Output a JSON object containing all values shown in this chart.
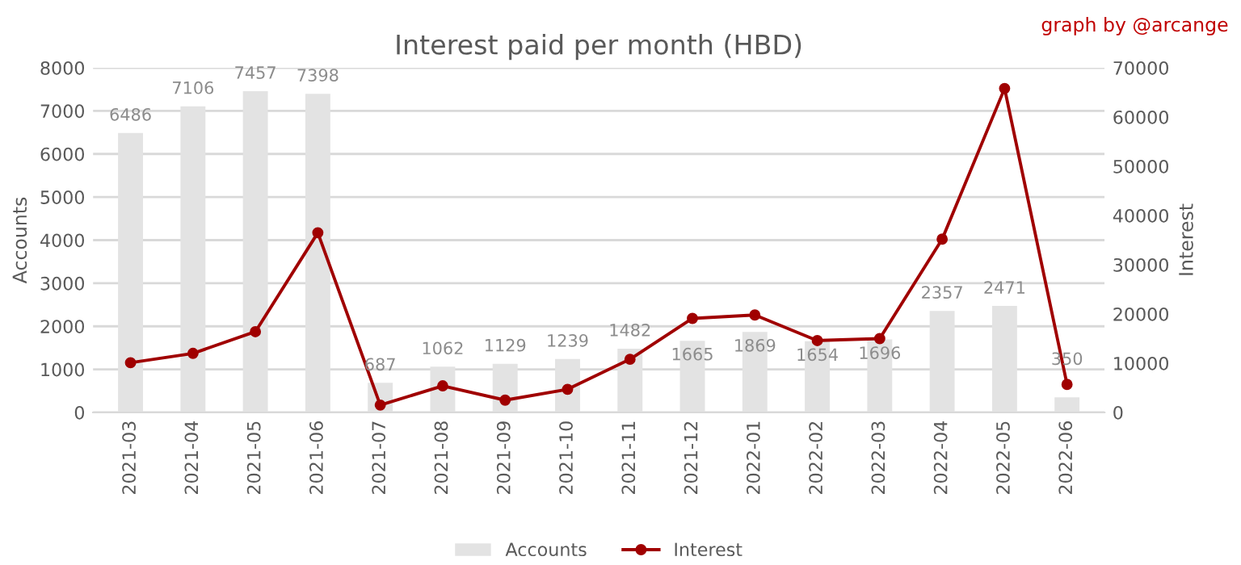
{
  "chart_data": {
    "type": "bar",
    "title": "Interest paid per month (HBD)",
    "ylabel": "Accounts",
    "y2label": "Interest",
    "annotations": [
      "graph by @arcange"
    ],
    "categories": [
      "2021-03",
      "2021-04",
      "2021-05",
      "2021-06",
      "2021-07",
      "2021-08",
      "2021-09",
      "2021-10",
      "2021-11",
      "2021-12",
      "2022-01",
      "2022-02",
      "2022-03",
      "2022-04",
      "2022-05",
      "2022-06"
    ],
    "series": [
      {
        "name": "Accounts",
        "color": "#e3e3e3",
        "values": [
          6486,
          7106,
          7457,
          7398,
          687,
          1062,
          1129,
          1239,
          1482,
          1665,
          1869,
          1654,
          1696,
          2357,
          2471,
          350
        ],
        "value_labels": [
          "6486",
          "7106",
          "7457",
          "7398",
          "687",
          "1062",
          "1129",
          "1239",
          "1482",
          "1665",
          "1869",
          "1654",
          "1696",
          "2357",
          "2471",
          "350"
        ]
      },
      {
        "name": "Interest",
        "type": "line",
        "axis": "y2",
        "color": "#a00000",
        "values": [
          10100,
          12000,
          16400,
          36500,
          1500,
          5400,
          2500,
          4700,
          10800,
          19100,
          19800,
          14600,
          15000,
          35200,
          65800,
          5700
        ]
      }
    ],
    "ylim": [
      0,
      8000
    ],
    "yticks": [
      0,
      1000,
      2000,
      3000,
      4000,
      5000,
      6000,
      7000,
      8000
    ],
    "y2lim": [
      0,
      70000
    ],
    "y2ticks": [
      0,
      10000,
      20000,
      30000,
      40000,
      50000,
      60000,
      70000
    ],
    "grid": "y",
    "legend": "bottom",
    "marker": "circle",
    "line_style": "solid"
  }
}
